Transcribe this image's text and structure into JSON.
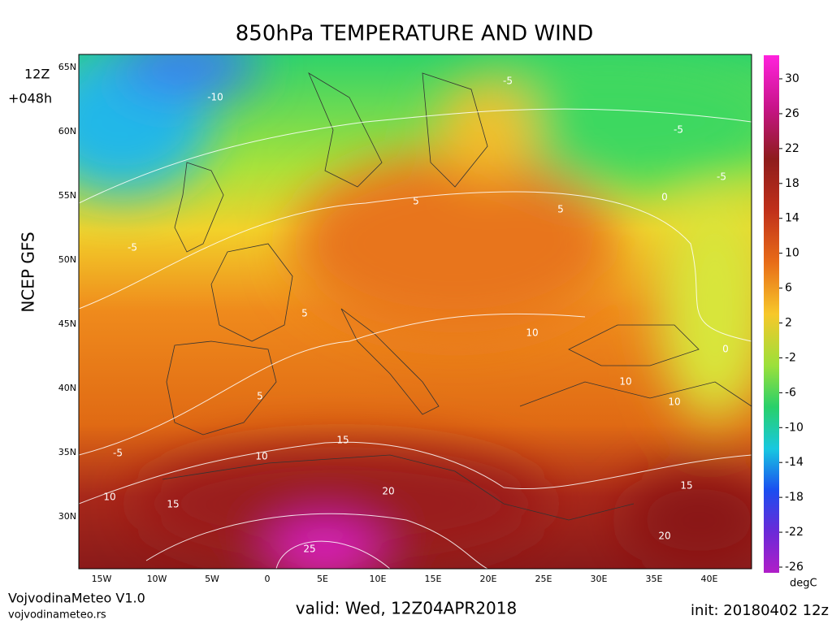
{
  "header": {
    "title": "850hPa TEMPERATURE AND WIND"
  },
  "side": {
    "run_hour": "12Z",
    "lead": "+048h",
    "model": "NCEP GFS"
  },
  "map": {
    "lat_labels": [
      "65N",
      "60N",
      "55N",
      "50N",
      "45N",
      "40N",
      "35N",
      "30N"
    ],
    "lon_labels": [
      "15W",
      "10W",
      "5W",
      "0",
      "5E",
      "10E",
      "15E",
      "20E",
      "25E",
      "30E",
      "35E",
      "40E"
    ],
    "contour_labels": [
      "-10",
      "-5",
      "-5",
      "0",
      "-5",
      "5",
      "5",
      "5",
      "10",
      "10",
      "10",
      "10",
      "15",
      "15",
      "15",
      "20",
      "20",
      "25",
      "-5",
      "0",
      "5",
      "-5",
      "10"
    ]
  },
  "colorbar": {
    "ticks": [
      30,
      26,
      22,
      18,
      14,
      10,
      6,
      2,
      -2,
      -6,
      -10,
      -14,
      -18,
      -22,
      -26
    ],
    "unit": "degC"
  },
  "footer": {
    "brand": "VojvodinaMeteo V1.0",
    "site": "vojvodinameteo.rs",
    "valid": "valid: Wed, 12Z04APR2018",
    "init": "init: 20180402 12z"
  }
}
